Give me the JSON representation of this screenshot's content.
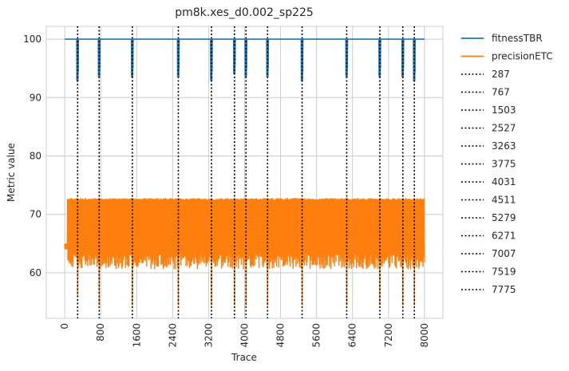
{
  "chart_data": {
    "type": "line",
    "title": "pm8k.xes_d0.002_sp225",
    "xlabel": "Trace",
    "ylabel": "Metric value",
    "xlim": [
      -410,
      8410
    ],
    "ylim": [
      52.2,
      102.2
    ],
    "x_ticks": [
      0,
      800,
      1600,
      2400,
      3200,
      4000,
      4800,
      5600,
      6400,
      7200,
      8000
    ],
    "y_ticks": [
      60,
      70,
      80,
      90,
      100
    ],
    "grid": true,
    "legend_position": "outside-right",
    "x_range": [
      0,
      8000
    ],
    "series": [
      {
        "name": "fitnessTBR",
        "color": "#1f77b4",
        "baseline": 100,
        "dips": [
          {
            "x": 287,
            "min": 92.8
          },
          {
            "x": 767,
            "min": 93.5
          },
          {
            "x": 1503,
            "min": 93.5
          },
          {
            "x": 2527,
            "min": 93.5
          },
          {
            "x": 3263,
            "min": 92.9
          },
          {
            "x": 3775,
            "min": 94.0
          },
          {
            "x": 4031,
            "min": 93.5
          },
          {
            "x": 4511,
            "min": 93.5
          },
          {
            "x": 5279,
            "min": 92.8
          },
          {
            "x": 6271,
            "min": 93.5
          },
          {
            "x": 7007,
            "min": 93.5
          },
          {
            "x": 7519,
            "min": 93.5
          },
          {
            "x": 7775,
            "min": 92.8
          }
        ]
      },
      {
        "name": "precisionETC",
        "color": "#ff7f0e",
        "band_high": 72.8,
        "band_low": 60.6,
        "start_value": 64.5,
        "dips": [
          {
            "x": 287,
            "min": 56.0
          },
          {
            "x": 767,
            "min": 54.5
          },
          {
            "x": 1503,
            "min": 54.5
          },
          {
            "x": 2527,
            "min": 54.5
          },
          {
            "x": 3263,
            "min": 54.5
          },
          {
            "x": 3775,
            "min": 54.5
          },
          {
            "x": 4031,
            "min": 54.5
          },
          {
            "x": 4511,
            "min": 54.5
          },
          {
            "x": 5279,
            "min": 54.5
          },
          {
            "x": 6271,
            "min": 54.5
          },
          {
            "x": 7007,
            "min": 54.5
          },
          {
            "x": 7519,
            "min": 54.5
          },
          {
            "x": 7775,
            "min": 54.5
          }
        ]
      }
    ],
    "vlines": [
      287,
      767,
      1503,
      2527,
      3263,
      3775,
      4031,
      4511,
      5279,
      6271,
      7007,
      7519,
      7775
    ],
    "vline_color": "#000000"
  }
}
